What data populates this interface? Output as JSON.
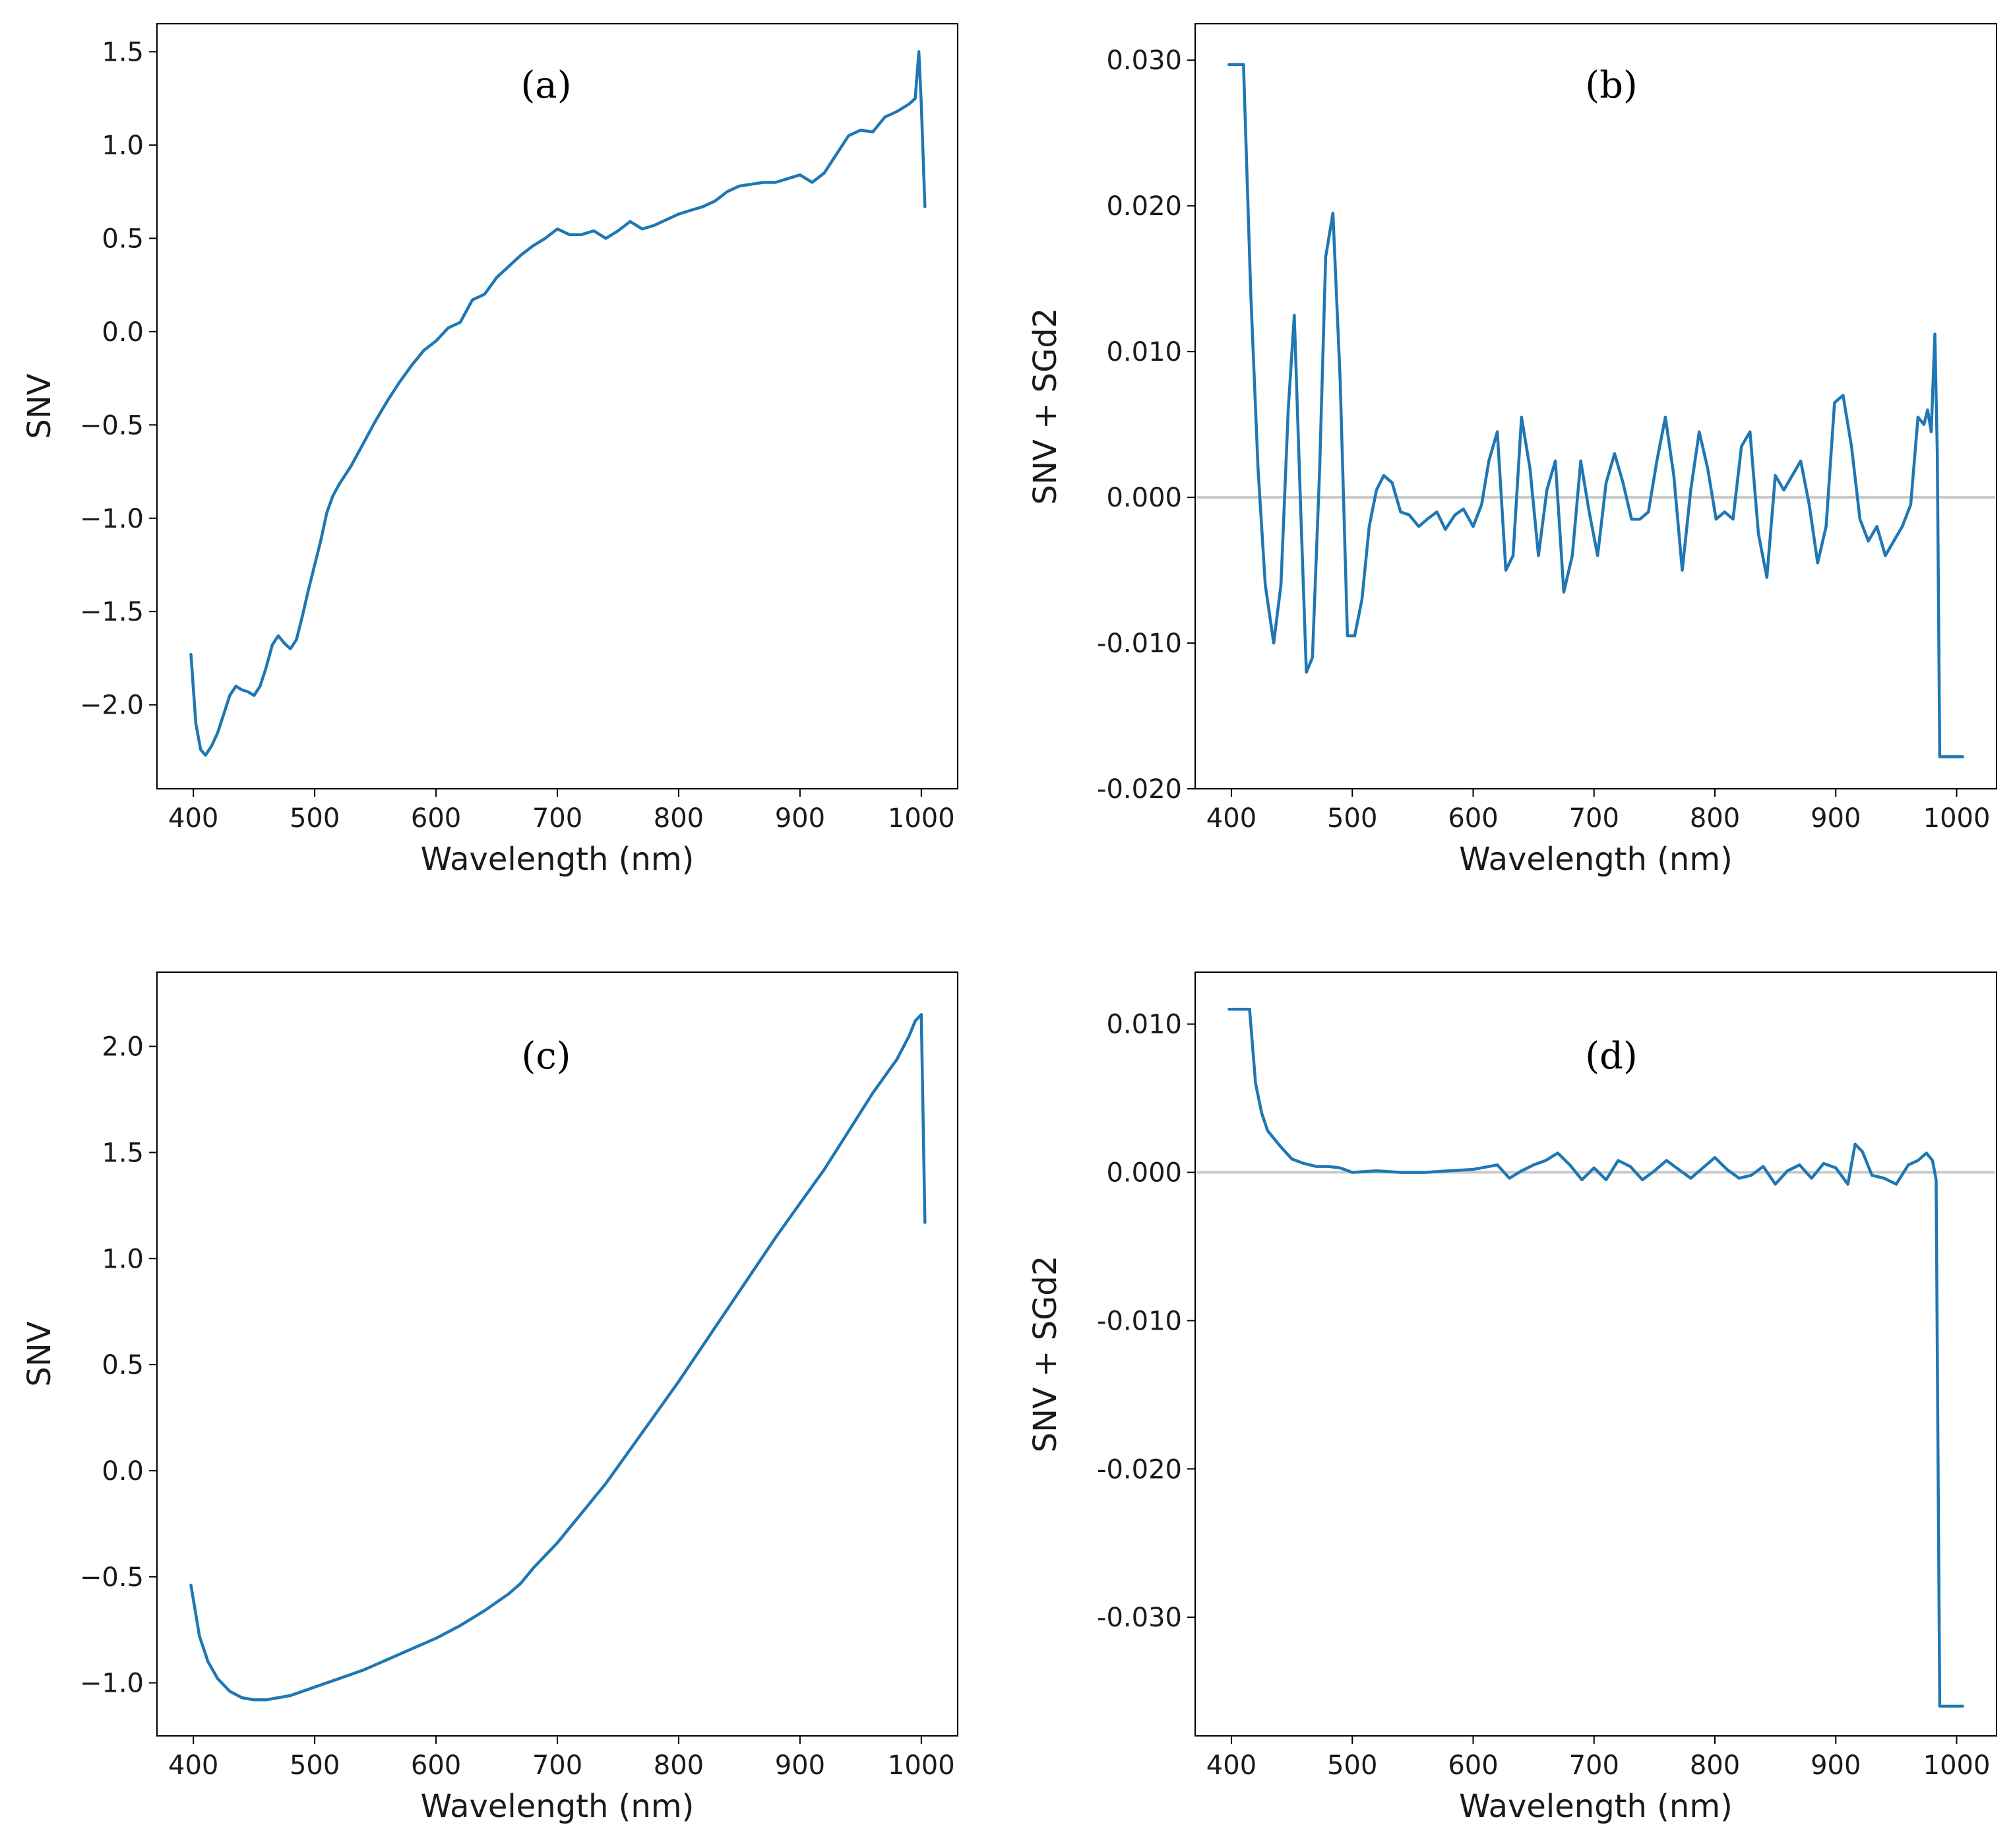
{
  "colors": {
    "series": "#1f77b4",
    "zero_line": "#c8c8c8",
    "frame": "#000000",
    "background": "#ffffff"
  },
  "chart_data": [
    {
      "id": "a",
      "type": "line",
      "panel_label": "(a)",
      "xlabel": "Wavelength (nm)",
      "ylabel": "SNV",
      "xlim": [
        370,
        1030
      ],
      "ylim": [
        -2.45,
        1.65
      ],
      "xticks": [
        400,
        500,
        600,
        700,
        800,
        900,
        1000
      ],
      "yticks": [
        -2.0,
        -1.5,
        -1.0,
        -0.5,
        0.0,
        0.5,
        1.0,
        1.5
      ],
      "ytick_labels": [
        "−2.0",
        "−1.5",
        "−1.0",
        "−0.5",
        "0.0",
        "0.5",
        "1.0",
        "1.5"
      ],
      "zero_line": false,
      "x": [
        398,
        402,
        406,
        410,
        415,
        420,
        425,
        430,
        435,
        440,
        445,
        450,
        455,
        460,
        465,
        470,
        475,
        480,
        485,
        490,
        495,
        500,
        505,
        510,
        515,
        520,
        525,
        530,
        540,
        550,
        560,
        570,
        580,
        590,
        600,
        610,
        620,
        630,
        640,
        650,
        660,
        670,
        680,
        690,
        700,
        710,
        720,
        730,
        740,
        750,
        760,
        770,
        780,
        790,
        800,
        810,
        820,
        830,
        840,
        850,
        860,
        870,
        880,
        890,
        900,
        910,
        920,
        930,
        940,
        950,
        960,
        970,
        980,
        990,
        995,
        998,
        1000,
        1003
      ],
      "y": [
        -1.73,
        -2.1,
        -2.24,
        -2.27,
        -2.22,
        -2.15,
        -2.05,
        -1.95,
        -1.9,
        -1.92,
        -1.93,
        -1.95,
        -1.9,
        -1.8,
        -1.68,
        -1.63,
        -1.67,
        -1.7,
        -1.65,
        -1.52,
        -1.38,
        -1.25,
        -1.12,
        -0.97,
        -0.88,
        -0.82,
        -0.77,
        -0.72,
        -0.6,
        -0.48,
        -0.37,
        -0.27,
        -0.18,
        -0.1,
        -0.05,
        0.02,
        0.05,
        0.17,
        0.2,
        0.29,
        0.35,
        0.41,
        0.46,
        0.5,
        0.55,
        0.52,
        0.52,
        0.54,
        0.5,
        0.54,
        0.59,
        0.55,
        0.57,
        0.6,
        0.63,
        0.65,
        0.67,
        0.7,
        0.75,
        0.78,
        0.79,
        0.8,
        0.8,
        0.82,
        0.84,
        0.8,
        0.85,
        0.95,
        1.05,
        1.08,
        1.07,
        1.15,
        1.18,
        1.22,
        1.25,
        1.5,
        1.22,
        0.67
      ]
    },
    {
      "id": "b",
      "type": "line",
      "panel_label": "(b)",
      "xlabel": "Wavelength (nm)",
      "ylabel": "SNV + SGd2",
      "xlim": [
        370,
        1033
      ],
      "ylim": [
        -0.02,
        0.0325
      ],
      "xticks": [
        400,
        500,
        600,
        700,
        800,
        900,
        1000
      ],
      "yticks": [
        -0.02,
        -0.01,
        0.0,
        0.01,
        0.02,
        0.03
      ],
      "ytick_labels": [
        "-0.020",
        "-0.010",
        "0.000",
        "0.010",
        "0.020",
        "0.030"
      ],
      "zero_line": true,
      "x": [
        398,
        410,
        416,
        422,
        428,
        435,
        441,
        447,
        452,
        457,
        462,
        467,
        473,
        478,
        484,
        490,
        496,
        502,
        508,
        514,
        520,
        526,
        533,
        540,
        547,
        555,
        562,
        570,
        577,
        585,
        592,
        600,
        607,
        613,
        620,
        627,
        633,
        640,
        647,
        654,
        661,
        668,
        675,
        682,
        689,
        696,
        703,
        710,
        717,
        724,
        731,
        738,
        745,
        752,
        759,
        766,
        773,
        780,
        787,
        794,
        801,
        808,
        815,
        822,
        829,
        836,
        843,
        850,
        857,
        864,
        871,
        878,
        885,
        892,
        899,
        906,
        913,
        920,
        927,
        934,
        941,
        948,
        955,
        962,
        968,
        973,
        976,
        979,
        982,
        984,
        986,
        1005
      ],
      "y": [
        0.0297,
        0.0297,
        0.014,
        0.002,
        -0.006,
        -0.01,
        -0.006,
        0.006,
        0.0125,
        0.0,
        -0.012,
        -0.011,
        0.002,
        0.0165,
        0.0195,
        0.008,
        -0.0095,
        -0.0095,
        -0.007,
        -0.002,
        0.0005,
        0.0015,
        0.001,
        -0.001,
        -0.0012,
        -0.002,
        -0.0015,
        -0.001,
        -0.0022,
        -0.0012,
        -0.0008,
        -0.002,
        -0.0005,
        0.0025,
        0.0045,
        -0.005,
        -0.004,
        0.0055,
        0.002,
        -0.004,
        0.0005,
        0.0025,
        -0.0065,
        -0.004,
        0.0025,
        -0.001,
        -0.004,
        0.001,
        0.003,
        0.001,
        -0.0015,
        -0.0015,
        -0.001,
        0.0025,
        0.0055,
        0.0015,
        -0.005,
        0.0005,
        0.0045,
        0.002,
        -0.0015,
        -0.001,
        -0.0015,
        0.0035,
        0.0045,
        -0.0025,
        -0.0055,
        0.0015,
        0.0005,
        0.0015,
        0.0025,
        -0.0005,
        -0.0045,
        -0.002,
        0.0065,
        0.007,
        0.0035,
        -0.0015,
        -0.003,
        -0.002,
        -0.004,
        -0.003,
        -0.002,
        -0.0005,
        0.0055,
        0.005,
        0.006,
        0.0045,
        0.0112,
        0.003,
        -0.0178,
        -0.0178
      ]
    },
    {
      "id": "c",
      "type": "line",
      "panel_label": "(c)",
      "xlabel": "Wavelength (nm)",
      "ylabel": "SNV",
      "xlim": [
        370,
        1030
      ],
      "ylim": [
        -1.25,
        2.35
      ],
      "xticks": [
        400,
        500,
        600,
        700,
        800,
        900,
        1000
      ],
      "yticks": [
        -1.0,
        -0.5,
        0.0,
        0.5,
        1.0,
        1.5,
        2.0
      ],
      "ytick_labels": [
        "−1.0",
        "−0.5",
        "0.0",
        "0.5",
        "1.0",
        "1.5",
        "2.0"
      ],
      "zero_line": false,
      "x": [
        398,
        405,
        412,
        420,
        430,
        440,
        450,
        460,
        470,
        480,
        500,
        520,
        540,
        560,
        580,
        600,
        620,
        640,
        660,
        670,
        680,
        700,
        720,
        740,
        760,
        780,
        800,
        820,
        840,
        860,
        880,
        900,
        920,
        940,
        960,
        980,
        990,
        995,
        1000,
        1003
      ],
      "y": [
        -0.54,
        -0.78,
        -0.9,
        -0.98,
        -1.04,
        -1.07,
        -1.08,
        -1.08,
        -1.07,
        -1.06,
        -1.02,
        -0.98,
        -0.94,
        -0.89,
        -0.84,
        -0.79,
        -0.73,
        -0.66,
        -0.58,
        -0.53,
        -0.46,
        -0.34,
        -0.2,
        -0.06,
        0.1,
        0.26,
        0.42,
        0.59,
        0.76,
        0.93,
        1.1,
        1.26,
        1.42,
        1.6,
        1.78,
        1.94,
        2.05,
        2.12,
        2.15,
        1.17
      ]
    },
    {
      "id": "d",
      "type": "line",
      "panel_label": "(d)",
      "xlabel": "Wavelength (nm)",
      "ylabel": "SNV + SGd2",
      "xlim": [
        370,
        1033
      ],
      "ylim": [
        -0.038,
        0.0135
      ],
      "xticks": [
        400,
        500,
        600,
        700,
        800,
        900,
        1000
      ],
      "yticks": [
        -0.03,
        -0.02,
        -0.01,
        0.0,
        0.01
      ],
      "ytick_labels": [
        "-0.030",
        "-0.020",
        "-0.010",
        "0.000",
        "0.010"
      ],
      "zero_line": true,
      "x": [
        398,
        415,
        420,
        425,
        430,
        440,
        450,
        460,
        470,
        480,
        490,
        500,
        520,
        540,
        560,
        580,
        600,
        620,
        630,
        640,
        650,
        660,
        670,
        680,
        690,
        700,
        710,
        720,
        730,
        740,
        750,
        760,
        770,
        780,
        790,
        800,
        810,
        820,
        830,
        840,
        850,
        860,
        870,
        880,
        890,
        900,
        910,
        916,
        922,
        930,
        940,
        950,
        960,
        968,
        975,
        980,
        983,
        986,
        1005
      ],
      "y": [
        0.011,
        0.011,
        0.006,
        0.004,
        0.0028,
        0.0018,
        0.0009,
        0.0006,
        0.0004,
        0.0004,
        0.0003,
        0.0,
        0.0001,
        0.0,
        0.0,
        0.0001,
        0.0002,
        0.0005,
        -0.0004,
        0.0001,
        0.0005,
        0.0008,
        0.0013,
        0.0005,
        -0.0005,
        0.0003,
        -0.0005,
        0.0008,
        0.0004,
        -0.0005,
        0.0001,
        0.0008,
        0.0002,
        -0.0004,
        0.0003,
        0.001,
        0.0002,
        -0.0004,
        -0.0002,
        0.0004,
        -0.0008,
        0.0001,
        0.0005,
        -0.0004,
        0.0006,
        0.0003,
        -0.0008,
        0.0019,
        0.0014,
        -0.0002,
        -0.0004,
        -0.0008,
        0.0005,
        0.0008,
        0.0013,
        0.0008,
        -0.0005,
        -0.036,
        -0.036
      ]
    }
  ]
}
